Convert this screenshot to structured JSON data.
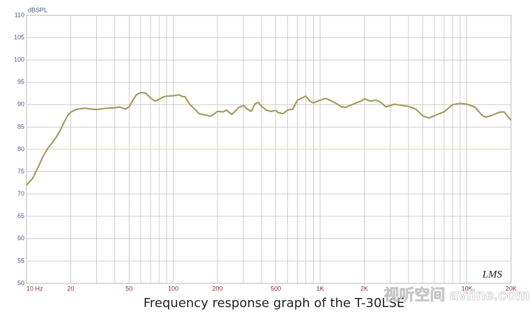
{
  "chart_data": {
    "type": "line",
    "y_label": "dBSPL",
    "caption": "Frequency response graph of the T-30LSE",
    "logo": "LMS",
    "watermark": "视听空间 avfine.com",
    "x": [
      10,
      11,
      12,
      13,
      14,
      15,
      16,
      17,
      18,
      19,
      20,
      22,
      25,
      28,
      30,
      35,
      40,
      43,
      47,
      50,
      53,
      56,
      60,
      65,
      70,
      75,
      80,
      85,
      90,
      100,
      110,
      115,
      120,
      130,
      140,
      150,
      170,
      180,
      200,
      220,
      230,
      250,
      280,
      300,
      320,
      340,
      360,
      380,
      400,
      430,
      460,
      500,
      520,
      560,
      600,
      650,
      700,
      750,
      800,
      850,
      900,
      1000,
      1100,
      1200,
      1300,
      1400,
      1500,
      1700,
      1900,
      2000,
      2200,
      2400,
      2600,
      2800,
      3000,
      3200,
      3500,
      4000,
      4500,
      5000,
      5500,
      6000,
      6500,
      7000,
      8000,
      9000,
      10000,
      11300,
      12800,
      13500,
      14800,
      16600,
      17900,
      20000
    ],
    "series": [
      {
        "name": "T-30LSE",
        "color": "#a39c5e",
        "values": [
          72,
          73.5,
          76,
          78.5,
          80.3,
          81.5,
          82.8,
          84.3,
          86,
          87.5,
          88.3,
          89,
          89.2,
          89,
          88.9,
          89.2,
          89.3,
          89.5,
          89,
          89.5,
          91,
          92.2,
          92.7,
          92.6,
          91.5,
          90.8,
          91.2,
          91.7,
          91.9,
          92,
          92.2,
          91.8,
          91.8,
          90,
          89,
          88,
          87.6,
          87.4,
          88.5,
          88.4,
          88.8,
          87.8,
          89.4,
          89.8,
          89,
          88.5,
          90.2,
          90.5,
          89.6,
          88.8,
          88.5,
          88.7,
          88.2,
          88,
          88.8,
          89,
          91,
          91.5,
          91.9,
          90.8,
          90.4,
          91,
          91.4,
          90.8,
          90.2,
          89.5,
          89.4,
          90.2,
          90.8,
          91.3,
          90.8,
          91,
          90.5,
          89.5,
          89.8,
          90.1,
          89.9,
          89.6,
          89,
          87.5,
          87,
          87.5,
          88,
          88.4,
          90,
          90.3,
          90.1,
          89.5,
          87.5,
          87.2,
          87.6,
          88.3,
          88.4,
          86.5
        ]
      }
    ],
    "xlim": [
      10,
      20000
    ],
    "log_x": true,
    "xticks": [
      {
        "value": 10,
        "label": "10 Hz"
      },
      20,
      50,
      100,
      200,
      500,
      {
        "value": 1000,
        "label": "1K"
      },
      {
        "value": 2000,
        "label": "2K"
      },
      {
        "value": 10000,
        "label": "10K"
      },
      {
        "value": 20000,
        "label": "20K"
      }
    ],
    "x_gridlines": [
      10,
      20,
      30,
      40,
      50,
      60,
      70,
      80,
      90,
      100,
      200,
      300,
      400,
      500,
      600,
      700,
      800,
      900,
      1000,
      2000,
      3000,
      4000,
      5000,
      6000,
      7000,
      8000,
      9000,
      10000,
      20000
    ],
    "ylim": [
      50,
      110
    ],
    "yticks": [
      50,
      55,
      60,
      65,
      70,
      75,
      80,
      85,
      90,
      95,
      100,
      105,
      110
    ],
    "grid": true,
    "reference_line": 80
  }
}
